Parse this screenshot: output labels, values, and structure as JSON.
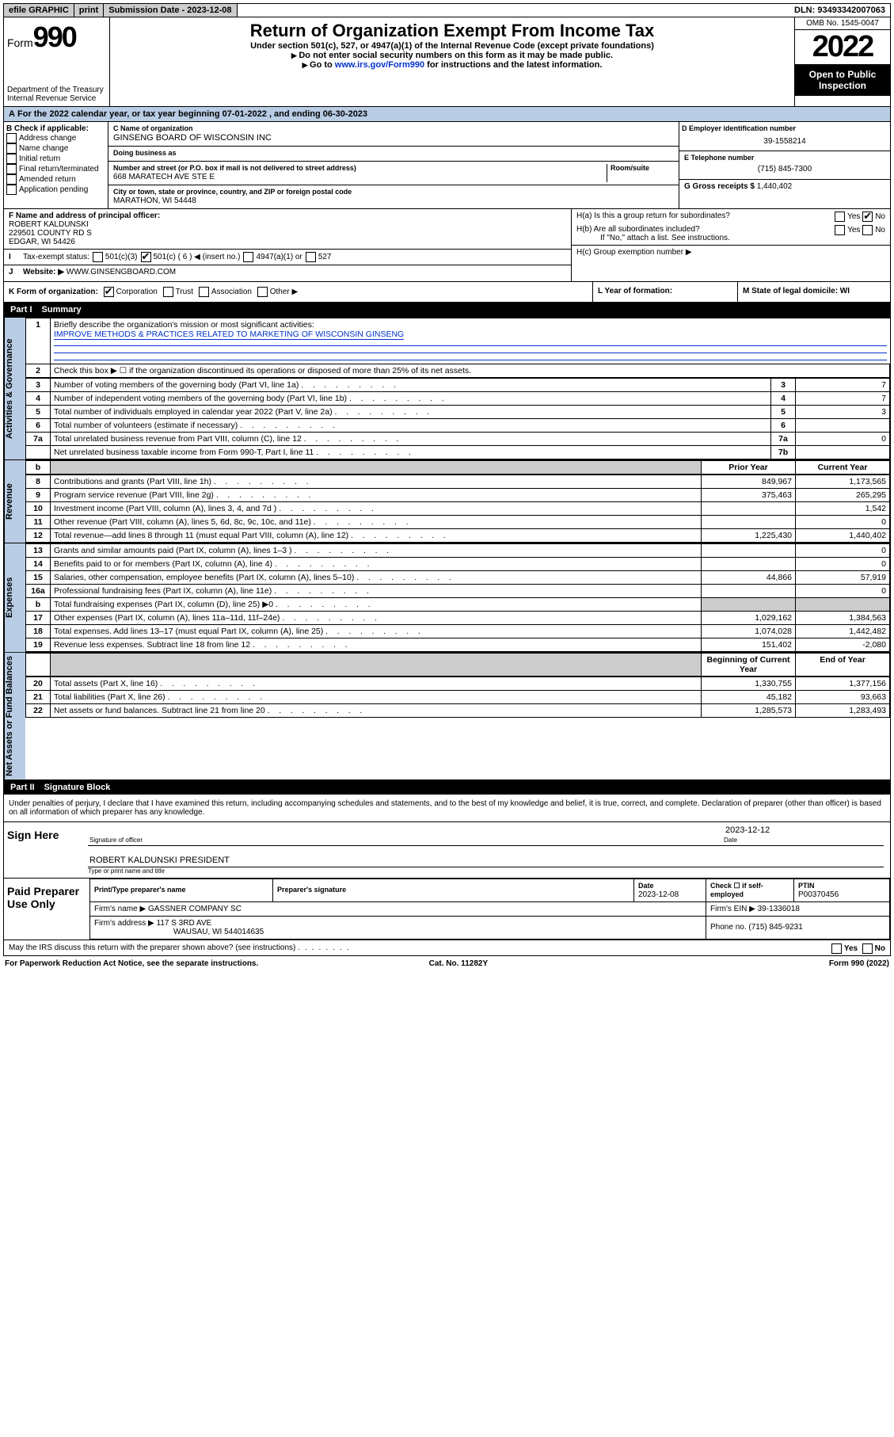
{
  "topbar": {
    "efile": "efile GRAPHIC",
    "print": "print",
    "subdate_lbl": "Submission Date - 2023-12-08",
    "dln": "DLN: 93493342007063"
  },
  "header": {
    "form_word": "Form",
    "form_num": "990",
    "dept": "Department of the Treasury",
    "irs": "Internal Revenue Service",
    "title": "Return of Organization Exempt From Income Tax",
    "sub1": "Under section 501(c), 527, or 4947(a)(1) of the Internal Revenue Code (except private foundations)",
    "sub2": "Do not enter social security numbers on this form as it may be made public.",
    "sub3_pre": "Go to ",
    "sub3_link": "www.irs.gov/Form990",
    "sub3_post": " for instructions and the latest information.",
    "omb": "OMB No. 1545-0047",
    "year": "2022",
    "public": "Open to Public Inspection"
  },
  "A": {
    "text": "For the 2022 calendar year, or tax year beginning 07-01-2022    , and ending 06-30-2023"
  },
  "B": {
    "lbl": "B Check if applicable:",
    "opts": [
      "Address change",
      "Name change",
      "Initial return",
      "Final return/terminated",
      "Amended return",
      "Application pending"
    ]
  },
  "C": {
    "name_lbl": "C Name of organization",
    "name": "GINSENG BOARD OF WISCONSIN INC",
    "dba_lbl": "Doing business as",
    "dba": "",
    "addr_lbl": "Number and street (or P.O. box if mail is not delivered to street address)",
    "room_lbl": "Room/suite",
    "addr": "668 MARATECH AVE STE E",
    "city_lbl": "City or town, state or province, country, and ZIP or foreign postal code",
    "city": "MARATHON, WI  54448"
  },
  "D": {
    "lbl": "D Employer identification number",
    "val": "39-1558214"
  },
  "E": {
    "lbl": "E Telephone number",
    "val": "(715) 845-7300"
  },
  "G": {
    "lbl": "G Gross receipts $",
    "val": "1,440,402"
  },
  "F": {
    "lbl": "F  Name and address of principal officer:",
    "l1": "ROBERT KALDUNSKI",
    "l2": "229501 COUNTY RD S",
    "l3": "EDGAR, WI  54426"
  },
  "H": {
    "a": "H(a)  Is this a group return for subordinates?",
    "b": "H(b)  Are all subordinates included?",
    "bnote": "If \"No,\" attach a list. See instructions.",
    "c": "H(c)  Group exemption number ▶",
    "yes": "Yes",
    "no": "No"
  },
  "I": {
    "lbl": "Tax-exempt status:",
    "o1": "501(c)(3)",
    "o2": "501(c) ( 6 ) ◀ (insert no.)",
    "o3": "4947(a)(1) or",
    "o4": "527"
  },
  "J": {
    "lbl": "Website: ▶",
    "val": "WWW.GINSENGBOARD.COM"
  },
  "K": {
    "lbl": "K Form of organization:",
    "o1": "Corporation",
    "o2": "Trust",
    "o3": "Association",
    "o4": "Other ▶"
  },
  "L": {
    "lbl": "L Year of formation:",
    "val": ""
  },
  "M": {
    "lbl": "M State of legal domicile: WI"
  },
  "partI": {
    "bar": "Part I",
    "title": "Summary",
    "l1": "Briefly describe the organization's mission or most significant activities:",
    "l1v": "IMPROVE METHODS & PRACTICES RELATED TO MARKETING OF WISCONSIN GINSENG",
    "l2": "Check this box ▶ ☐  if the organization discontinued its operations or disposed of more than 25% of its net assets.",
    "rows_gov": [
      {
        "n": "3",
        "t": "Number of voting members of the governing body (Part VI, line 1a)",
        "b": "3",
        "v": "7"
      },
      {
        "n": "4",
        "t": "Number of independent voting members of the governing body (Part VI, line 1b)",
        "b": "4",
        "v": "7"
      },
      {
        "n": "5",
        "t": "Total number of individuals employed in calendar year 2022 (Part V, line 2a)",
        "b": "5",
        "v": "3"
      },
      {
        "n": "6",
        "t": "Total number of volunteers (estimate if necessary)",
        "b": "6",
        "v": ""
      },
      {
        "n": "7a",
        "t": "Total unrelated business revenue from Part VIII, column (C), line 12",
        "b": "7a",
        "v": "0"
      },
      {
        "n": "",
        "t": "Net unrelated business taxable income from Form 990-T, Part I, line 11",
        "b": "7b",
        "v": ""
      }
    ],
    "pyr": "Prior Year",
    "cyr": "Current Year",
    "rows_rev": [
      {
        "n": "8",
        "t": "Contributions and grants (Part VIII, line 1h)",
        "p": "849,967",
        "c": "1,173,565"
      },
      {
        "n": "9",
        "t": "Program service revenue (Part VIII, line 2g)",
        "p": "375,463",
        "c": "265,295"
      },
      {
        "n": "10",
        "t": "Investment income (Part VIII, column (A), lines 3, 4, and 7d )",
        "p": "",
        "c": "1,542"
      },
      {
        "n": "11",
        "t": "Other revenue (Part VIII, column (A), lines 5, 6d, 8c, 9c, 10c, and 11e)",
        "p": "",
        "c": "0"
      },
      {
        "n": "12",
        "t": "Total revenue—add lines 8 through 11 (must equal Part VIII, column (A), line 12)",
        "p": "1,225,430",
        "c": "1,440,402"
      }
    ],
    "rows_exp": [
      {
        "n": "13",
        "t": "Grants and similar amounts paid (Part IX, column (A), lines 1–3 )",
        "p": "",
        "c": "0"
      },
      {
        "n": "14",
        "t": "Benefits paid to or for members (Part IX, column (A), line 4)",
        "p": "",
        "c": "0"
      },
      {
        "n": "15",
        "t": "Salaries, other compensation, employee benefits (Part IX, column (A), lines 5–10)",
        "p": "44,866",
        "c": "57,919"
      },
      {
        "n": "16a",
        "t": "Professional fundraising fees (Part IX, column (A), line 11e)",
        "p": "",
        "c": "0"
      },
      {
        "n": "b",
        "t": "Total fundraising expenses (Part IX, column (D), line 25) ▶0",
        "p": "shade",
        "c": "shade"
      },
      {
        "n": "17",
        "t": "Other expenses (Part IX, column (A), lines 11a–11d, 11f–24e)",
        "p": "1,029,162",
        "c": "1,384,563"
      },
      {
        "n": "18",
        "t": "Total expenses. Add lines 13–17 (must equal Part IX, column (A), line 25)",
        "p": "1,074,028",
        "c": "1,442,482"
      },
      {
        "n": "19",
        "t": "Revenue less expenses. Subtract line 18 from line 12",
        "p": "151,402",
        "c": "-2,080"
      }
    ],
    "boy": "Beginning of Current Year",
    "eoy": "End of Year",
    "rows_bal": [
      {
        "n": "20",
        "t": "Total assets (Part X, line 16)",
        "p": "1,330,755",
        "c": "1,377,156"
      },
      {
        "n": "21",
        "t": "Total liabilities (Part X, line 26)",
        "p": "45,182",
        "c": "93,663"
      },
      {
        "n": "22",
        "t": "Net assets or fund balances. Subtract line 21 from line 20",
        "p": "1,285,573",
        "c": "1,283,493"
      }
    ],
    "vtabs": {
      "gov": "Activities & Governance",
      "rev": "Revenue",
      "exp": "Expenses",
      "bal": "Net Assets or Fund Balances"
    }
  },
  "partII": {
    "bar": "Part II",
    "title": "Signature Block",
    "decl": "Under penalties of perjury, I declare that I have examined this return, including accompanying schedules and statements, and to the best of my knowledge and belief, it is true, correct, and complete. Declaration of preparer (other than officer) is based on all information of which preparer has any knowledge.",
    "sign_here": "Sign Here",
    "sig_of": "Signature of officer",
    "date_lbl": "Date",
    "date": "2023-12-12",
    "officer": "ROBERT KALDUNSKI PRESIDENT",
    "officer_cap": "Type or print name and title",
    "paid": "Paid Preparer Use Only",
    "pp_name_lbl": "Print/Type preparer's name",
    "pp_sig_lbl": "Preparer's signature",
    "pp_date_lbl": "Date",
    "pp_date": "2023-12-08",
    "pp_check": "Check ☐ if self-employed",
    "ptin_lbl": "PTIN",
    "ptin": "P00370456",
    "firm_lbl": "Firm's name    ▶",
    "firm": "GASSNER COMPANY SC",
    "ein_lbl": "Firm's EIN ▶",
    "ein": "39-1336018",
    "faddr_lbl": "Firm's address ▶",
    "faddr": "117 S 3RD AVE",
    "faddr2": "WAUSAU, WI  544014635",
    "phone_lbl": "Phone no.",
    "phone": "(715) 845-9231",
    "may": "May the IRS discuss this return with the preparer shown above? (see instructions)"
  },
  "foot": {
    "l": "For Paperwork Reduction Act Notice, see the separate instructions.",
    "m": "Cat. No. 11282Y",
    "r": "Form 990 (2022)"
  }
}
